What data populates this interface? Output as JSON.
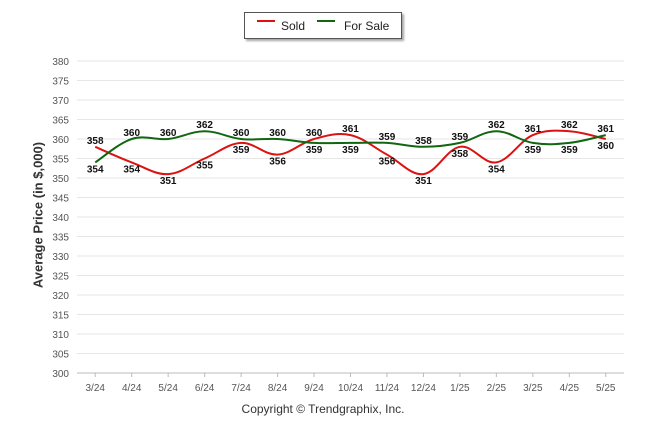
{
  "chart_data": {
    "type": "line",
    "categories": [
      "3/24",
      "4/24",
      "5/24",
      "6/24",
      "7/24",
      "8/24",
      "9/24",
      "10/24",
      "11/24",
      "12/24",
      "1/25",
      "2/25",
      "3/25",
      "4/25",
      "5/25"
    ],
    "series": [
      {
        "name": "Sold",
        "color": "#dd1111",
        "values": [
          358,
          354,
          351,
          355,
          359,
          356,
          360,
          361,
          356,
          351,
          358,
          354,
          361,
          362,
          360
        ]
      },
      {
        "name": "For Sale",
        "color": "#116611",
        "values": [
          354,
          360,
          360,
          362,
          360,
          360,
          359,
          359,
          359,
          358,
          359,
          362,
          359,
          359,
          361
        ]
      }
    ],
    "ylabel": "Average Price (in $,000)",
    "xlabel": "",
    "ylim": [
      300,
      380
    ],
    "yticks": [
      300,
      305,
      310,
      315,
      320,
      325,
      330,
      335,
      340,
      345,
      350,
      355,
      360,
      365,
      370,
      375,
      380
    ],
    "grid": true,
    "legend": "top-center"
  },
  "footer": "Copyright © Trendgraphix, Inc."
}
